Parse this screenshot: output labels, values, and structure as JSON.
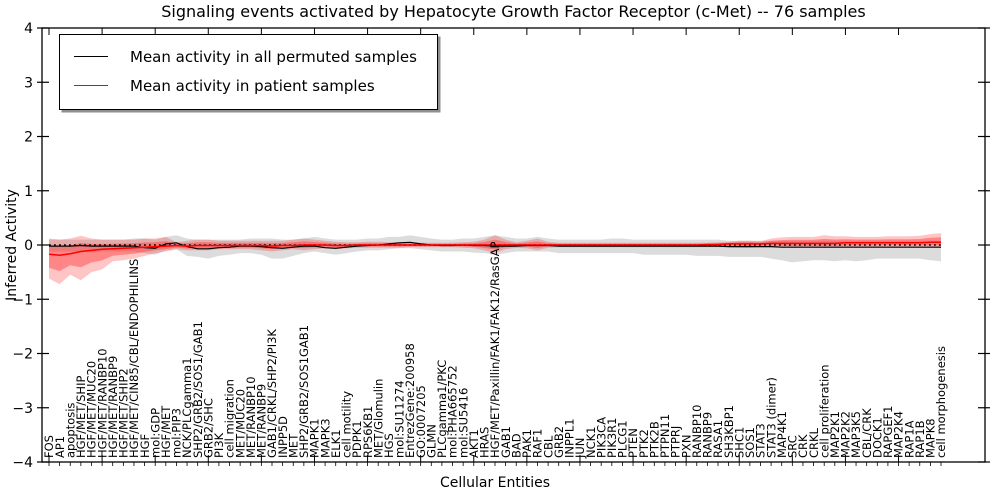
{
  "title": "Signaling events activated by Hepatocyte Growth Factor Receptor (c-Met) -- 76 samples",
  "legend": {
    "permuted_label": "Mean activity in all permuted samples",
    "patient_label": "Mean activity in patient samples"
  },
  "colors": {
    "permuted_line": "#000000",
    "patient_line": "#ff0000",
    "permuted_band": "#bfbfbf",
    "patient_band": "#ff3030",
    "zero_line": "#000000"
  },
  "chart_data": {
    "type": "line",
    "title": "Signaling events activated by Hepatocyte Growth Factor Receptor (c-Met) -- 76 samples",
    "xlabel": "Cellular Entities",
    "ylabel": "Inferred Activity",
    "ylim": [
      -4,
      4
    ],
    "yticklabels": [
      "4",
      "3",
      "2",
      "1",
      "0",
      "−1",
      "−2",
      "−3",
      "−4"
    ],
    "yticks": [
      4,
      3,
      2,
      1,
      0,
      -1,
      -2,
      -3,
      -4
    ],
    "grid": false,
    "legend_position": "upper left",
    "zero_line": {
      "y": 0,
      "style": "dotted",
      "color": "#000000"
    },
    "categories": [
      "FOS",
      "AP1",
      "apoptosis",
      "HGF/MET/SHIP",
      "HGF/MET/MUC20",
      "HGF/MET/RANBP10",
      "HGF/MET/RANBP9",
      "HGF/MET/SHIP2",
      "HGF/MET/CIN85/CBL/ENDOPHILINS",
      "HGF",
      "mol:GDP",
      "HGF/MET",
      "mol:PIP3",
      "NCK/PLCgamma1",
      "SHP2/GRB2/SOS1/GAB1",
      "GRB2/SHC",
      "PI3K",
      "cell migration",
      "MET/MUC20",
      "MET/RANBP10",
      "MET/RANBP9",
      "GAB1/CRKL/SHP2/PI3K",
      "INPP5D",
      "MET",
      "SHP2/GRB2/SOS1GAB1",
      "MAPK1",
      "MAPK3",
      "ELK1",
      "cell motility",
      "PDPK1",
      "RPS6KB1",
      "MET/Glomulin",
      "HGS",
      "mol:SU11274",
      "EntrezGene:200958",
      "GO:0007205",
      "GLMN",
      "PLCgamma1/PKC",
      "mol:PHA665752",
      "mol:SU5416",
      "AKT1",
      "HRAS",
      "HGF/MET/Paxillin/FAK1/FAK12/RasGAP",
      "GAB1",
      "BAD",
      "PAK1",
      "RAF1",
      "CBL",
      "GRB2",
      "INPPL1",
      "JUN",
      "NCK1",
      "PIK3CA",
      "PIK3R1",
      "PLCG1",
      "PTEN",
      "PTK2",
      "PTK2B",
      "PTPN11",
      "PTPRJ",
      "PXN",
      "RANBP10",
      "RANBP9",
      "RASA1",
      "SH3KBP1",
      "SHC1",
      "SOS1",
      "STAT3",
      "STAT3 (dimer)",
      "MAP4K1",
      "SRC",
      "CRK",
      "CRKL",
      "cell proliferation",
      "MAP2K1",
      "MAP2K2",
      "MAP3K5",
      "CBL/CRK",
      "DOCK1",
      "RAPGEF1",
      "MAP2K4",
      "RAP1A",
      "RAP1B",
      "MAPK8",
      "cell morphogenesis"
    ],
    "series": [
      {
        "name": "Mean activity in all permuted samples",
        "color": "#000000",
        "values": [
          -0.02,
          -0.02,
          -0.02,
          -0.01,
          -0.02,
          -0.02,
          -0.02,
          -0.02,
          -0.02,
          -0.05,
          -0.06,
          0.02,
          0.04,
          -0.03,
          -0.07,
          -0.07,
          -0.05,
          -0.04,
          -0.02,
          -0.02,
          -0.03,
          -0.05,
          -0.06,
          -0.04,
          -0.02,
          -0.02,
          -0.05,
          -0.06,
          -0.04,
          -0.02,
          -0.01,
          0,
          0.02,
          0.04,
          0.05,
          0.02,
          0,
          -0.01,
          -0.01,
          0,
          -0.01,
          -0.01,
          -0.02,
          -0.02,
          -0.02,
          -0.01,
          -0.01,
          -0.01,
          -0.02,
          -0.02,
          -0.02,
          -0.02,
          -0.02,
          -0.02,
          -0.02,
          -0.02,
          -0.02,
          -0.02,
          -0.02,
          -0.02,
          -0.02,
          -0.02,
          -0.02,
          -0.02,
          -0.03,
          -0.03,
          -0.03,
          -0.03,
          -0.03,
          -0.04,
          -0.04,
          -0.04,
          -0.04,
          -0.04,
          -0.04,
          -0.04,
          -0.04,
          -0.04,
          -0.04,
          -0.04,
          -0.04,
          -0.04,
          -0.04,
          -0.04,
          -0.04
        ],
        "band_upper": [
          0.1,
          0.1,
          0.1,
          0.1,
          0.1,
          0.1,
          0.1,
          0.1,
          0.12,
          0.12,
          0.1,
          0.15,
          0.18,
          0.12,
          0.1,
          0.1,
          0.1,
          0.1,
          0.1,
          0.12,
          0.12,
          0.12,
          0.1,
          0.1,
          0.12,
          0.15,
          0.12,
          0.1,
          0.1,
          0.1,
          0.12,
          0.12,
          0.15,
          0.15,
          0.18,
          0.15,
          0.12,
          0.1,
          0.1,
          0.12,
          0.12,
          0.15,
          0.18,
          0.15,
          0.12,
          0.12,
          0.15,
          0.12,
          0.1,
          0.1,
          0.1,
          0.1,
          0.1,
          0.12,
          0.12,
          0.1,
          0.1,
          0.1,
          0.1,
          0.1,
          0.1,
          0.1,
          0.1,
          0.1,
          0.08,
          0.08,
          0.08,
          0.08,
          0.08,
          0.08,
          0.08,
          0.08,
          0.08,
          0.08,
          0.08,
          0.08,
          0.08,
          0.08,
          0.08,
          0.08,
          0.08,
          0.08,
          0.08,
          0.08,
          0.08
        ],
        "band_lower": [
          -0.12,
          -0.12,
          -0.12,
          -0.12,
          -0.14,
          -0.12,
          -0.12,
          -0.12,
          -0.12,
          -0.15,
          -0.18,
          -0.1,
          -0.08,
          -0.2,
          -0.22,
          -0.25,
          -0.2,
          -0.18,
          -0.15,
          -0.15,
          -0.18,
          -0.25,
          -0.25,
          -0.2,
          -0.15,
          -0.12,
          -0.15,
          -0.18,
          -0.15,
          -0.12,
          -0.1,
          -0.1,
          -0.08,
          -0.06,
          -0.06,
          -0.08,
          -0.1,
          -0.12,
          -0.12,
          -0.12,
          -0.14,
          -0.15,
          -0.18,
          -0.15,
          -0.12,
          -0.12,
          -0.12,
          -0.12,
          -0.15,
          -0.15,
          -0.15,
          -0.15,
          -0.15,
          -0.15,
          -0.15,
          -0.15,
          -0.18,
          -0.18,
          -0.18,
          -0.18,
          -0.18,
          -0.2,
          -0.2,
          -0.2,
          -0.22,
          -0.22,
          -0.22,
          -0.22,
          -0.25,
          -0.28,
          -0.32,
          -0.3,
          -0.28,
          -0.28,
          -0.3,
          -0.28,
          -0.3,
          -0.28,
          -0.25,
          -0.25,
          -0.25,
          -0.25,
          -0.25,
          -0.28,
          -0.3
        ]
      },
      {
        "name": "Mean activity in patient samples",
        "color": "#ff0000",
        "values": [
          -0.17,
          -0.19,
          -0.16,
          -0.12,
          -0.1,
          -0.08,
          -0.07,
          -0.06,
          -0.05,
          -0.04,
          -0.03,
          -0.02,
          -0.01,
          -0.02,
          -0.01,
          -0.01,
          -0.01,
          -0.01,
          -0.01,
          -0.01,
          -0.01,
          -0.02,
          -0.01,
          -0.01,
          0,
          0,
          0,
          -0.01,
          -0.01,
          0,
          0,
          0,
          0,
          0,
          0,
          0,
          0,
          0,
          0,
          0,
          0,
          0,
          0,
          0,
          0,
          0,
          0,
          0,
          0,
          0,
          0,
          0,
          0,
          0,
          0,
          0,
          0,
          0,
          0,
          0,
          0,
          0,
          0.01,
          0.01,
          0.02,
          0.02,
          0.02,
          0.02,
          0.03,
          0.03,
          0.03,
          0.03,
          0.03,
          0.03,
          0.03,
          0.04,
          0.04,
          0.04,
          0.04,
          0.04,
          0.04,
          0.04,
          0.04,
          0.05,
          0.05
        ],
        "band_upper": [
          0.12,
          0.1,
          0.12,
          0.17,
          0.12,
          0.1,
          0.1,
          0.1,
          0.1,
          0.12,
          0.12,
          0.15,
          0.05,
          0.08,
          0.1,
          0.1,
          0.08,
          0.08,
          0.08,
          0.08,
          0.08,
          0.08,
          0.08,
          0.1,
          0.12,
          0.1,
          0.08,
          0.06,
          0.05,
          0.05,
          0.06,
          0.06,
          0.05,
          0.05,
          0.05,
          0.04,
          0.04,
          0.04,
          0.04,
          0.05,
          0.06,
          0.1,
          0.18,
          0.1,
          0.05,
          0.08,
          0.12,
          0.06,
          0.04,
          0.04,
          0.04,
          0.04,
          0.04,
          0.04,
          0.04,
          0.04,
          0.04,
          0.04,
          0.04,
          0.04,
          0.04,
          0.04,
          0.04,
          0.05,
          0.06,
          0.08,
          0.08,
          0.07,
          0.12,
          0.14,
          0.15,
          0.15,
          0.15,
          0.18,
          0.16,
          0.16,
          0.15,
          0.15,
          0.15,
          0.16,
          0.16,
          0.16,
          0.17,
          0.2,
          0.22
        ],
        "band_lower": [
          -0.62,
          -0.72,
          -0.55,
          -0.65,
          -0.5,
          -0.45,
          -0.3,
          -0.28,
          -0.25,
          -0.2,
          -0.15,
          -0.12,
          -0.08,
          -0.1,
          -0.1,
          -0.1,
          -0.08,
          -0.08,
          -0.08,
          -0.08,
          -0.1,
          -0.12,
          -0.1,
          -0.08,
          -0.1,
          -0.08,
          -0.06,
          -0.08,
          -0.06,
          -0.05,
          -0.05,
          -0.05,
          -0.05,
          -0.05,
          -0.04,
          -0.04,
          -0.04,
          -0.04,
          -0.04,
          -0.05,
          -0.06,
          -0.1,
          -0.15,
          -0.08,
          -0.05,
          -0.06,
          -0.1,
          -0.05,
          -0.04,
          -0.04,
          -0.04,
          -0.04,
          -0.04,
          -0.04,
          -0.04,
          -0.04,
          -0.04,
          -0.04,
          -0.04,
          -0.04,
          -0.04,
          -0.04,
          -0.04,
          -0.04,
          -0.04,
          -0.05,
          -0.05,
          -0.04,
          -0.04,
          -0.04,
          -0.05,
          -0.04,
          -0.04,
          -0.05,
          -0.04,
          -0.04,
          -0.04,
          -0.04,
          -0.03,
          -0.03,
          -0.03,
          -0.03,
          -0.03,
          -0.04,
          -0.05
        ]
      }
    ]
  }
}
